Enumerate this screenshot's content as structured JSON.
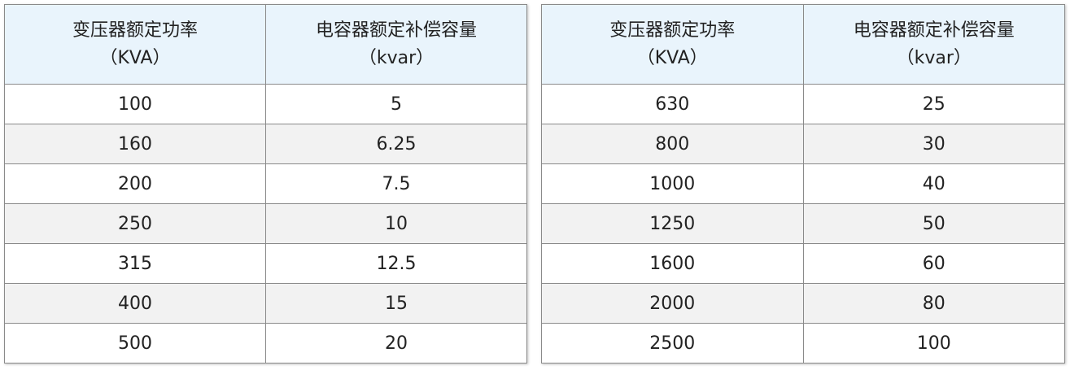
{
  "tables": [
    {
      "headers": [
        [
          "变压器额定功率",
          "（KVA）"
        ],
        [
          "电容器额定补偿容量",
          "（kvar）"
        ]
      ],
      "rows": [
        [
          "100",
          "5"
        ],
        [
          "160",
          "6.25"
        ],
        [
          "200",
          "7.5"
        ],
        [
          "250",
          "10"
        ],
        [
          "315",
          "12.5"
        ],
        [
          "400",
          "15"
        ],
        [
          "500",
          "20"
        ]
      ]
    },
    {
      "headers": [
        [
          "变压器额定功率",
          "（KVA）"
        ],
        [
          "电容器额定补偿容量",
          "（kvar）"
        ]
      ],
      "rows": [
        [
          "630",
          "25"
        ],
        [
          "800",
          "30"
        ],
        [
          "1000",
          "40"
        ],
        [
          "1250",
          "50"
        ],
        [
          "1600",
          "60"
        ],
        [
          "2000",
          "80"
        ],
        [
          "2500",
          "100"
        ]
      ]
    }
  ]
}
